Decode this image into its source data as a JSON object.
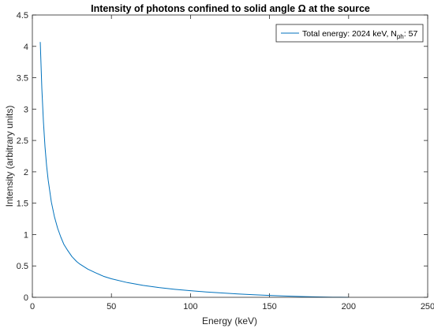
{
  "chart_data": {
    "type": "line",
    "title": "Intensity of photons confined to solid angle Ω at the source",
    "xlabel": "Energy (keV)",
    "ylabel": "Intensity (arbitrary units)",
    "xlim": [
      0,
      250
    ],
    "ylim": [
      0,
      4.5
    ],
    "xticks": [
      0,
      50,
      100,
      150,
      200,
      250
    ],
    "yticks": [
      0,
      0.5,
      1,
      1.5,
      2,
      2.5,
      3,
      3.5,
      4,
      4.5
    ],
    "xtick_labels": [
      "0",
      "50",
      "100",
      "150",
      "200",
      "250"
    ],
    "ytick_labels": [
      "0",
      "0.5",
      "1",
      "1.5",
      "2",
      "2.5",
      "3",
      "3.5",
      "4",
      "4.5"
    ],
    "grid": false,
    "legend": {
      "location": "top-right",
      "label_prefix": "Total energy: 2024 keV, N",
      "label_subscript": "ph",
      "label_suffix": ": 57"
    },
    "colors": {
      "series": "#0072BD",
      "axes": "#262626",
      "background": "#ffffff"
    },
    "series": [
      {
        "name": "Total energy: 2024 keV, Nph: 57",
        "x": [
          5,
          6,
          7,
          8,
          9,
          10,
          12,
          14,
          16,
          18,
          20,
          22,
          25,
          28,
          30,
          35,
          40,
          45,
          50,
          60,
          70,
          80,
          90,
          100,
          110,
          120,
          130,
          140,
          150,
          160,
          170,
          180,
          190,
          195,
          200
        ],
        "y": [
          4.07,
          3.33,
          2.8,
          2.4,
          2.1,
          1.87,
          1.52,
          1.28,
          1.1,
          0.96,
          0.84,
          0.76,
          0.65,
          0.57,
          0.53,
          0.45,
          0.39,
          0.335,
          0.295,
          0.235,
          0.19,
          0.155,
          0.128,
          0.105,
          0.085,
          0.069,
          0.054,
          0.041,
          0.03,
          0.02,
          0.012,
          0.006,
          0.002,
          0.001,
          0.0
        ]
      }
    ]
  }
}
